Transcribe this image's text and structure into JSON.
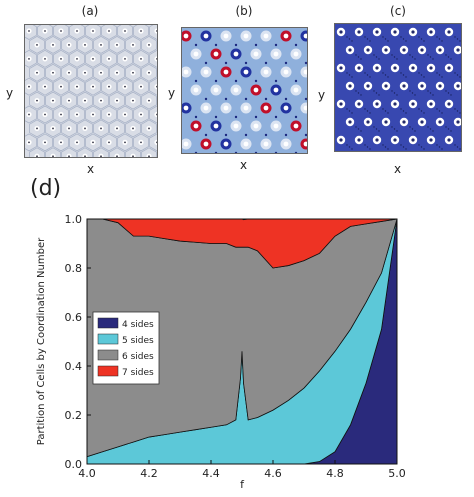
{
  "panels": {
    "a": {
      "label": "(a)",
      "xlabel": "x",
      "ylabel": "y"
    },
    "b": {
      "label": "(b)",
      "xlabel": "x",
      "ylabel": "y"
    },
    "c": {
      "label": "(c)",
      "xlabel": "x",
      "ylabel": "y"
    },
    "d": {
      "label": "(d)"
    }
  },
  "colors": {
    "four_sides": "#2a2a7c",
    "five_sides": "#5cc8d8",
    "six_sides": "#8c8c8c",
    "seven_sides": "#ee3324",
    "tile_a": "#d9dde6",
    "tile_b": "#8fb0dc",
    "tile_c": "#3848b0",
    "defect_red": "#c0102a",
    "defect_blue": "#2233a0"
  },
  "chart_data": {
    "type": "area",
    "stacked": true,
    "xlabel": "f",
    "ylabel": "Partition of Cells by Coordination Number",
    "xlim": [
      4.0,
      5.0
    ],
    "ylim": [
      0.0,
      1.0
    ],
    "xticks": [
      "4.0",
      "4.2",
      "4.4",
      "4.6",
      "4.8",
      "5.0"
    ],
    "yticks": [
      "0.0",
      "0.2",
      "0.4",
      "0.6",
      "0.8",
      "1.0"
    ],
    "legend_position": "center-left",
    "x": [
      4.0,
      4.05,
      4.1,
      4.15,
      4.2,
      4.25,
      4.3,
      4.35,
      4.4,
      4.45,
      4.48,
      4.495,
      4.5,
      4.505,
      4.52,
      4.55,
      4.6,
      4.65,
      4.7,
      4.75,
      4.8,
      4.85,
      4.9,
      4.95,
      5.0
    ],
    "series": [
      {
        "name": "4 sides",
        "values": [
          0,
          0,
          0,
          0,
          0,
          0,
          0,
          0,
          0,
          0,
          0,
          0,
          0,
          0,
          0,
          0,
          0,
          0,
          0,
          0.01,
          0.05,
          0.16,
          0.33,
          0.55,
          1.0
        ]
      },
      {
        "name": "5 sides",
        "values": [
          0.03,
          0.05,
          0.07,
          0.09,
          0.11,
          0.12,
          0.13,
          0.14,
          0.15,
          0.16,
          0.18,
          0.35,
          0.46,
          0.33,
          0.18,
          0.19,
          0.22,
          0.26,
          0.31,
          0.37,
          0.41,
          0.39,
          0.33,
          0.23,
          0.0
        ]
      },
      {
        "name": "6 sides",
        "values": [
          0.97,
          0.95,
          0.915,
          0.84,
          0.82,
          0.8,
          0.78,
          0.765,
          0.75,
          0.74,
          0.705,
          0.535,
          0.425,
          0.555,
          0.705,
          0.68,
          0.58,
          0.55,
          0.52,
          0.48,
          0.47,
          0.42,
          0.32,
          0.21,
          0.0
        ]
      },
      {
        "name": "7 sides",
        "values": [
          0.0,
          0.0,
          0.015,
          0.07,
          0.07,
          0.08,
          0.09,
          0.095,
          0.1,
          0.1,
          0.115,
          0.115,
          0.115,
          0.112,
          0.115,
          0.13,
          0.2,
          0.19,
          0.17,
          0.14,
          0.07,
          0.03,
          0.02,
          0.01,
          0.0
        ]
      }
    ]
  }
}
